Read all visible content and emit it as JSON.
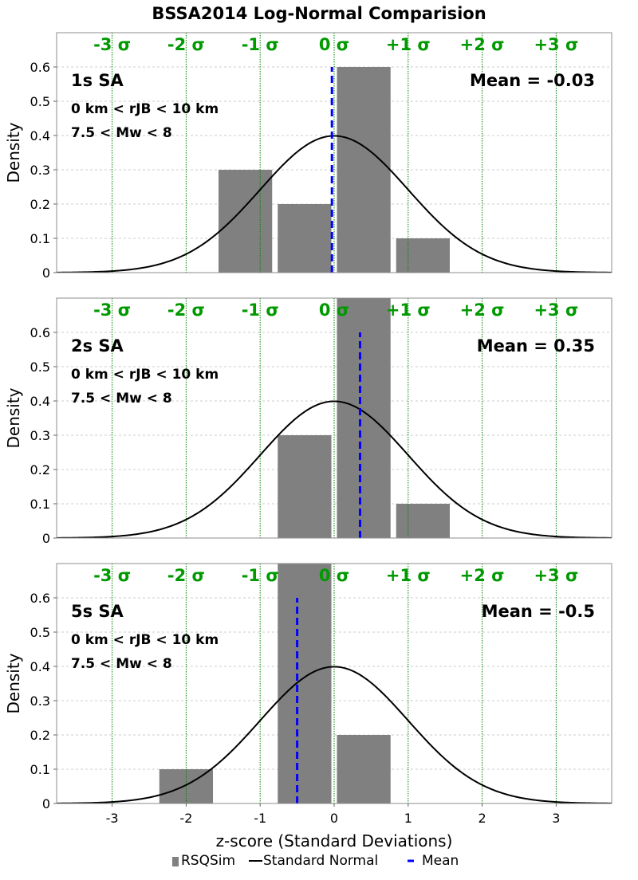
{
  "title": "BSSA2014 Log-Normal Comparision",
  "xlabel": "z-score (Standard Deviations)",
  "ylabel": "Density",
  "colors": {
    "bar": "#808080",
    "normal_curve": "#000000",
    "mean_line": "#0000ff",
    "sigma_lines": "#008000",
    "sigma_labels": "#009900",
    "grid": "#cccccc"
  },
  "legend": {
    "placement": "bottom-center",
    "items": [
      {
        "label": "RSQSim",
        "kind": "bar"
      },
      {
        "label": "Standard Normal",
        "kind": "line"
      },
      {
        "label": "Mean",
        "kind": "dashed"
      }
    ]
  },
  "chart_data": [
    {
      "type": "bar",
      "panel_label": "1s SA",
      "conditions": [
        "0 km < rJB < 10 km",
        "7.5 < Mw < 8"
      ],
      "mean_text": "Mean = -0.03",
      "mean": -0.03,
      "sigma_labels": [
        "-3 σ",
        "-2 σ",
        "-1 σ",
        "0 σ",
        "+1 σ",
        "+2 σ",
        "+3 σ"
      ],
      "sigma_positions": [
        -3,
        -2,
        -1,
        0,
        1,
        2,
        3
      ],
      "bins": [
        {
          "x0": -1.6,
          "x1": -0.8,
          "value": 0.3
        },
        {
          "x0": -0.8,
          "x1": 0.0,
          "value": 0.2
        },
        {
          "x0": 0.0,
          "x1": 0.8,
          "value": 0.6
        },
        {
          "x0": 0.8,
          "x1": 1.6,
          "value": 0.1
        }
      ],
      "xlim": [
        -3.75,
        3.75
      ],
      "ylim": [
        0,
        0.7
      ],
      "yticks": [
        "0",
        "0.1",
        "0.2",
        "0.3",
        "0.4",
        "0.5",
        "0.6"
      ],
      "grid": true
    },
    {
      "type": "bar",
      "panel_label": "2s SA",
      "conditions": [
        "0 km < rJB < 10 km",
        "7.5 < Mw < 8"
      ],
      "mean_text": "Mean = 0.35",
      "mean": 0.35,
      "sigma_labels": [
        "-3 σ",
        "-2 σ",
        "-1 σ",
        "0 σ",
        "+1 σ",
        "+2 σ",
        "+3 σ"
      ],
      "sigma_positions": [
        -3,
        -2,
        -1,
        0,
        1,
        2,
        3
      ],
      "bins": [
        {
          "x0": -0.8,
          "x1": 0.0,
          "value": 0.3
        },
        {
          "x0": 0.0,
          "x1": 0.8,
          "value": 0.7
        },
        {
          "x0": 0.8,
          "x1": 1.6,
          "value": 0.1
        }
      ],
      "xlim": [
        -3.75,
        3.75
      ],
      "ylim": [
        0,
        0.7
      ],
      "yticks": [
        "0",
        "0.1",
        "0.2",
        "0.3",
        "0.4",
        "0.5",
        "0.6"
      ],
      "grid": true
    },
    {
      "type": "bar",
      "panel_label": "5s SA",
      "conditions": [
        "0 km < rJB < 10 km",
        "7.5 < Mw < 8"
      ],
      "mean_text": "Mean = -0.5",
      "mean": -0.5,
      "sigma_labels": [
        "-3 σ",
        "-2 σ",
        "-1 σ",
        "0 σ",
        "+1 σ",
        "+2 σ",
        "+3 σ"
      ],
      "sigma_positions": [
        -3,
        -2,
        -1,
        0,
        1,
        2,
        3
      ],
      "bins": [
        {
          "x0": -2.4,
          "x1": -1.6,
          "value": 0.1
        },
        {
          "x0": -0.8,
          "x1": 0.0,
          "value": 0.7
        },
        {
          "x0": 0.0,
          "x1": 0.8,
          "value": 0.2
        }
      ],
      "xlim": [
        -3.75,
        3.75
      ],
      "ylim": [
        0,
        0.7
      ],
      "yticks": [
        "0",
        "0.1",
        "0.2",
        "0.3",
        "0.4",
        "0.5",
        "0.6"
      ],
      "xticks": [
        "-3",
        "-2",
        "-1",
        "0",
        "1",
        "2",
        "3"
      ],
      "grid": true
    }
  ]
}
